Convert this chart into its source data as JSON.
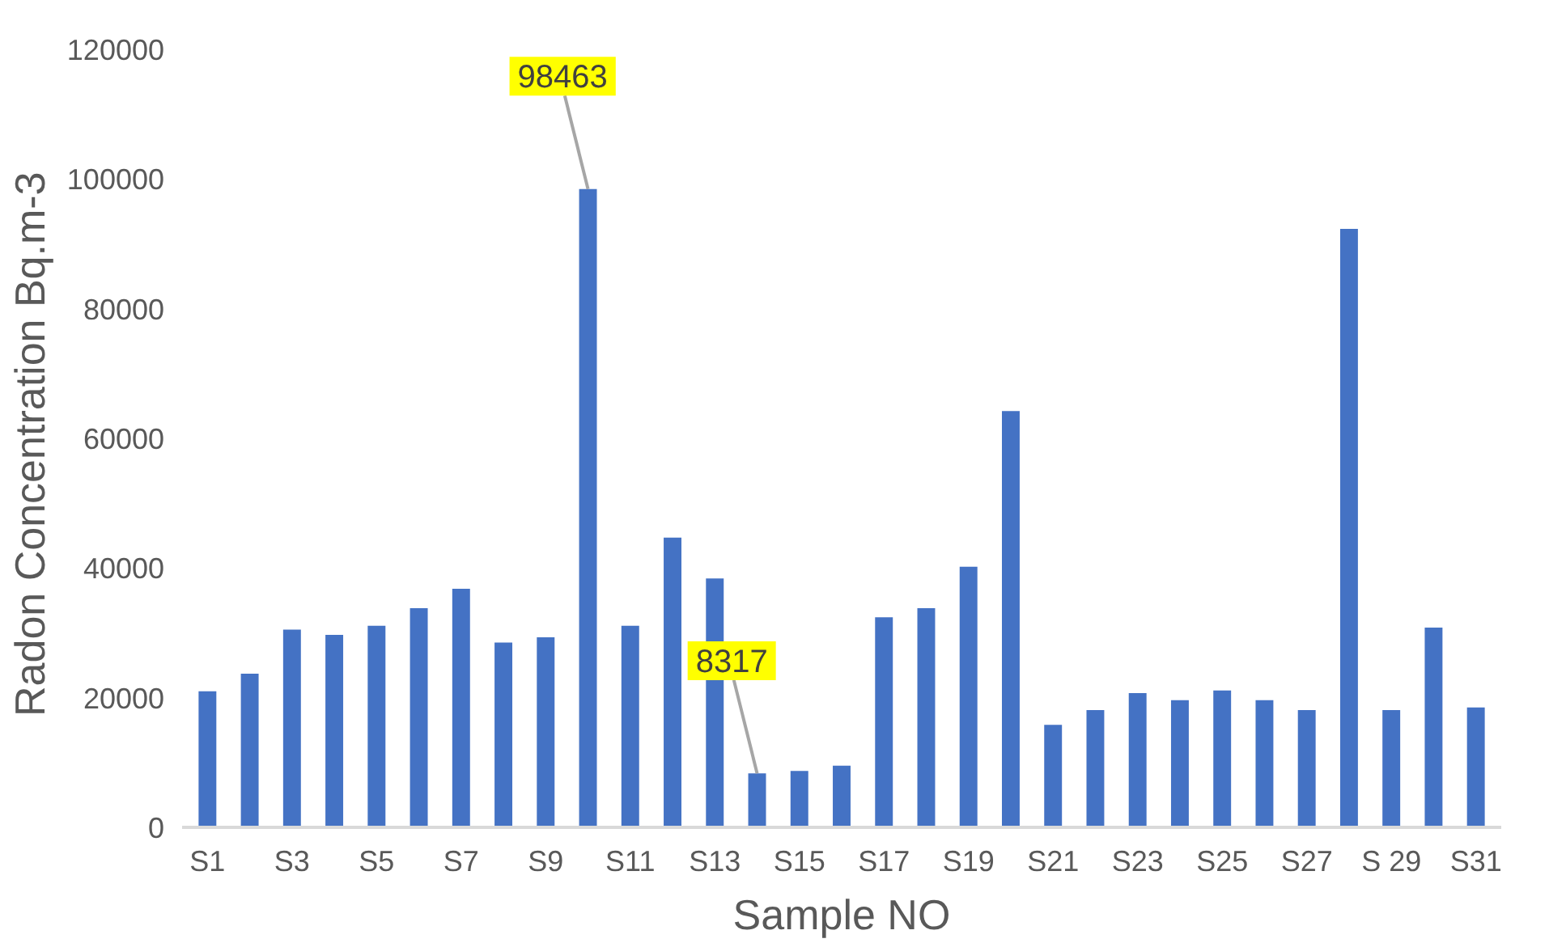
{
  "chart_data": {
    "type": "bar",
    "xlabel": "Sample NO",
    "ylabel": "Radon Concentration  Bq.m-3",
    "categories": [
      "S1",
      null,
      "S3",
      null,
      "S5",
      null,
      "S7",
      null,
      "S9",
      null,
      "S11",
      null,
      "S13",
      null,
      "S15",
      null,
      "S17",
      null,
      "S19",
      null,
      "S21",
      null,
      "S23",
      null,
      "S25",
      null,
      "S27",
      null,
      "S 29",
      null,
      "S31"
    ],
    "values": [
      21000,
      23700,
      30500,
      29700,
      31100,
      33800,
      36800,
      28500,
      29300,
      98463,
      31100,
      44700,
      38400,
      8317,
      8700,
      9500,
      32400,
      33800,
      40200,
      64200,
      15800,
      18100,
      20700,
      19600,
      21100,
      19600,
      18100,
      92300,
      18100,
      30800,
      18500
    ],
    "value_labels": [
      null,
      null,
      null,
      null,
      null,
      null,
      null,
      null,
      null,
      "98463",
      null,
      null,
      null,
      "8317",
      null,
      null,
      null,
      null,
      null,
      null,
      null,
      null,
      null,
      null,
      null,
      null,
      null,
      null,
      null,
      null,
      null
    ],
    "color": "#4472c4",
    "ylim": [
      0,
      120000
    ],
    "yticks": [
      0,
      20000,
      40000,
      60000,
      80000,
      100000,
      120000
    ],
    "grid": false
  }
}
